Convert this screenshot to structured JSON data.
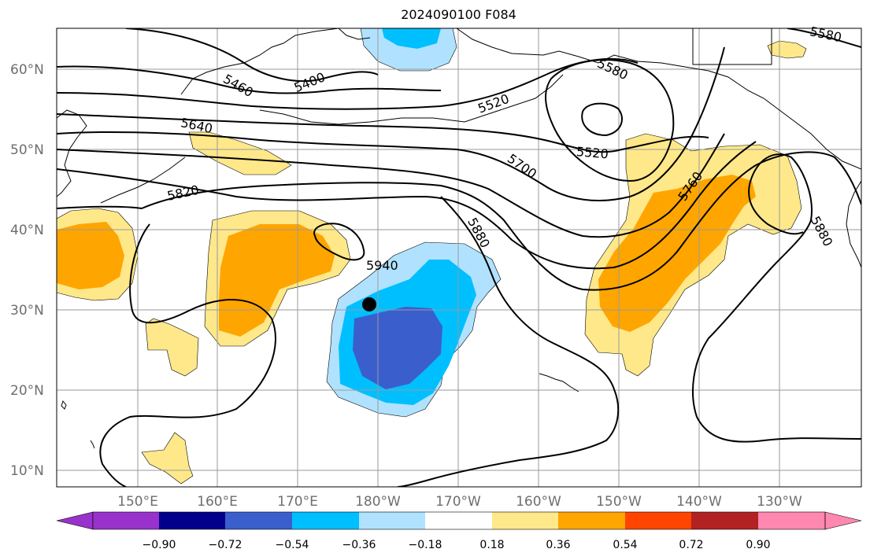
{
  "title": "2024090100 F084",
  "lat_labels": [
    "10°N",
    "20°N",
    "30°N",
    "40°N",
    "50°N",
    "60°N"
  ],
  "lon_labels": [
    "150°E",
    "160°E",
    "170°E",
    "180°W",
    "170°W",
    "160°W",
    "150°W",
    "140°W",
    "130°W"
  ],
  "contour_labels": [
    "5400",
    "5460",
    "5520",
    "5520",
    "5580",
    "5580",
    "5640",
    "5700",
    "5760",
    "5820",
    "5880",
    "5880",
    "5940"
  ],
  "colorbar": {
    "ticks": [
      "−0.90",
      "−0.72",
      "−0.54",
      "−0.36",
      "−0.18",
      "0.18",
      "0.36",
      "0.54",
      "0.72",
      "0.90"
    ],
    "colors": [
      "#9932CC",
      "#00008B",
      "#3A5FCD",
      "#00BFFF",
      "#B0E2FF",
      "#FFFFFF",
      "#FFE88A",
      "#FFA500",
      "#FF4500",
      "#B22222",
      "#FF88B0"
    ]
  },
  "anomaly_colors": {
    "strong_negative": "#3A5FCD",
    "negative": "#00BFFF",
    "weak_negative": "#B0E2FF",
    "weak_positive": "#FFE88A",
    "positive": "#FFA500"
  },
  "marker": "typhoon-position-dot"
}
